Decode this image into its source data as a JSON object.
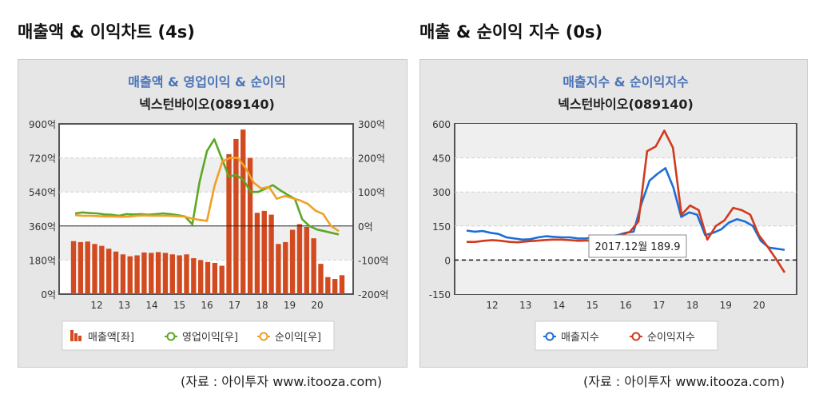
{
  "page": {
    "left_section_title": "매출액 & 이익차트 (4s)",
    "right_section_title": "매출 & 순이익 지수 (0s)",
    "left_source": "(자료 : 아이투자 www.itooza.com)",
    "right_source": "(자료 : 아이투자 www.itooza.com)"
  },
  "chart_data": [
    {
      "type": "bar",
      "title": "매출액 & 영업이익 & 순이익",
      "subtitle": "넥스턴바이오(089140)",
      "x_tick_labels": [
        "12",
        "13",
        "14",
        "15",
        "16",
        "17",
        "18",
        "19",
        "20"
      ],
      "left_axis": {
        "min": 0,
        "max": 900,
        "ticks": [
          "0억",
          "180억",
          "360억",
          "540억",
          "720억",
          "900억"
        ]
      },
      "right_axis": {
        "min": -200,
        "max": 300,
        "ticks": [
          "-200억",
          "-100억",
          "0억",
          "100억",
          "200억",
          "300억"
        ]
      },
      "legend": [
        {
          "name": "매출액[좌]",
          "color": "#d24a1f"
        },
        {
          "name": "영업이익[우]",
          "color": "#5ca826"
        },
        {
          "name": "순이익[우]",
          "color": "#f0a024"
        }
      ],
      "series": [
        {
          "name": "매출액[좌]",
          "axis": "left",
          "kind": "bar",
          "color": "#d24a1f",
          "values": [
            280,
            275,
            278,
            265,
            255,
            240,
            225,
            210,
            200,
            205,
            220,
            218,
            222,
            218,
            210,
            205,
            210,
            190,
            180,
            170,
            165,
            150,
            740,
            820,
            870,
            720,
            430,
            440,
            420,
            265,
            275,
            340,
            370,
            355,
            295,
            160,
            90,
            80,
            100
          ]
        },
        {
          "name": "영업이익[우]",
          "axis": "right",
          "kind": "line",
          "color": "#5ca826",
          "values": [
            37,
            40,
            38,
            37,
            34,
            33,
            30,
            35,
            34,
            35,
            33,
            35,
            37,
            35,
            32,
            28,
            5,
            130,
            220,
            255,
            200,
            145,
            150,
            135,
            100,
            100,
            110,
            120,
            105,
            92,
            80,
            20,
            0,
            -10,
            -15,
            -20,
            -25
          ]
        },
        {
          "name": "순이익[우]",
          "axis": "right",
          "kind": "line",
          "color": "#f0a024",
          "values": [
            32,
            30,
            30,
            29,
            28,
            28,
            27,
            28,
            30,
            31,
            30,
            30,
            30,
            29,
            28,
            22,
            18,
            15,
            120,
            190,
            200,
            200,
            170,
            128,
            110,
            115,
            80,
            88,
            82,
            75,
            65,
            45,
            35,
            0,
            -15
          ]
        }
      ]
    },
    {
      "type": "line",
      "title": "매출지수 & 순이익지수",
      "subtitle": "넥스턴바이오(089140)",
      "x_tick_labels": [
        "12",
        "13",
        "14",
        "15",
        "16",
        "17",
        "18",
        "19",
        "20"
      ],
      "y_axis": {
        "min": -150,
        "max": 600,
        "ticks": [
          "-150",
          "0",
          "150",
          "300",
          "450",
          "600"
        ]
      },
      "legend": [
        {
          "name": "매출지수",
          "color": "#1c6ed6"
        },
        {
          "name": "순이익지수",
          "color": "#d03a1e"
        }
      ],
      "tooltip": "2017.12월 189.9",
      "series": [
        {
          "name": "매출지수",
          "color": "#1c6ed6",
          "values": [
            130,
            125,
            128,
            120,
            115,
            100,
            95,
            90,
            92,
            100,
            105,
            102,
            100,
            100,
            95,
            95,
            100,
            100,
            105,
            110,
            120,
            125,
            250,
            350,
            380,
            405,
            320,
            190,
            210,
            200,
            110,
            120,
            135,
            165,
            180,
            170,
            150,
            85,
            55,
            50,
            45
          ]
        },
        {
          "name": "순이익지수",
          "color": "#d03a1e",
          "values": [
            80,
            80,
            85,
            88,
            85,
            80,
            78,
            82,
            85,
            88,
            90,
            90,
            88,
            85,
            86,
            85,
            85,
            88,
            110,
            125,
            170,
            480,
            500,
            570,
            495,
            200,
            240,
            220,
            90,
            150,
            175,
            230,
            220,
            200,
            110,
            60,
            5,
            -55
          ]
        }
      ]
    }
  ]
}
